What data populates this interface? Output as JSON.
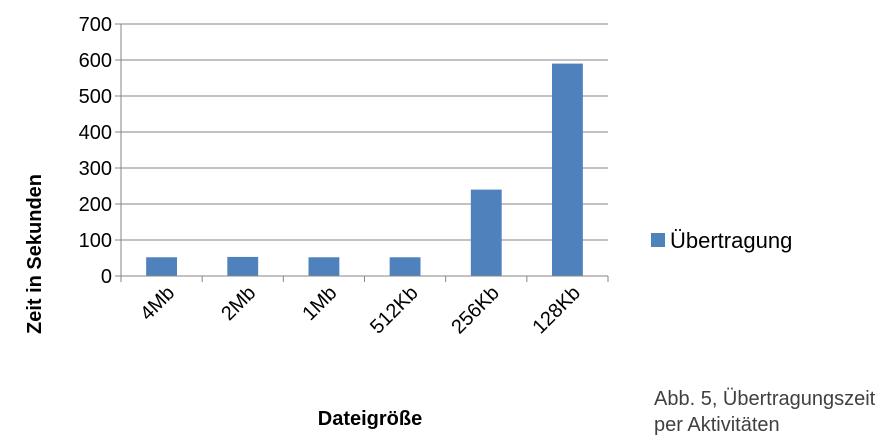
{
  "chart_data": {
    "type": "bar",
    "categories": [
      "4Mb",
      "2Mb",
      "1Mb",
      "512Kb",
      "256Kb",
      "128Kb"
    ],
    "series": [
      {
        "name": "Übertragung",
        "values": [
          52,
          53,
          52,
          52,
          240,
          590
        ],
        "color": "#4F81BD"
      }
    ],
    "xlabel": "Dateigröße",
    "ylabel": "Zeit in Sekunden",
    "ylim": [
      0,
      700
    ],
    "yticks": [
      0,
      100,
      200,
      300,
      400,
      500,
      600,
      700
    ],
    "grid": true,
    "legend": "right"
  },
  "caption": {
    "line1": "Abb. 5, Übertragungszeit",
    "line2": "per Aktivitäten"
  },
  "colors": {
    "bar": "#4F81BD",
    "grid": "#868686",
    "text": "#000000",
    "caption": "#404040"
  }
}
